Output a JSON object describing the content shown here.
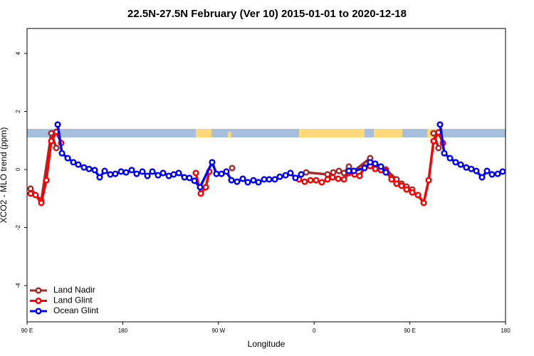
{
  "chart_data": {
    "type": "line",
    "title": "22.5N-27.5N February (Ver 10)   2015-01-01 to 2020-12-18",
    "x_label": "Longitude",
    "y_label": "XCO2 - MLO trend (ppm)",
    "xlim": [
      90,
      540
    ],
    "xticks": [
      {
        "value": 90,
        "label": "90 E"
      },
      180,
      {
        "value": 270,
        "label": "90 W"
      },
      {
        "value": 360,
        "label": "0"
      },
      {
        "value": 450,
        "label": "90 E"
      },
      {
        "value": 540,
        "label": "180"
      }
    ],
    "ylim": [
      -5.25,
      4.86
    ],
    "yticks": [
      -4,
      -2,
      0,
      2,
      4
    ],
    "legend": "bottom-left",
    "series": [
      {
        "name": "Land Nadir",
        "color": "#a52a2a",
        "x": [
          93.3,
          103.4,
          112.8,
          117.5,
          null,
          282.9,
          null,
          352.5,
          372.6,
          378.0,
          383.3,
          388.0,
          392.7,
          397.3,
          412.7,
          417.4,
          427.5,
          437.5,
          442.2,
          446.9,
          452.3,
          null,
          472.3,
          477.0
        ],
        "values": [
          -0.66,
          -1.08,
          1.25,
          0.74,
          null,
          0.05,
          null,
          -0.1,
          -0.17,
          -0.1,
          -0.05,
          -0.12,
          0.1,
          -0.05,
          0.39,
          0.12,
          0.0,
          -0.34,
          -0.49,
          -0.59,
          -0.69,
          null,
          1.25,
          0.74
        ]
      },
      {
        "name": "Land Glint",
        "color": "#ff0000",
        "x": [
          93.3,
          98.0,
          103.4,
          108.1,
          112.8,
          117.5,
          122.1,
          null,
          248.7,
          253.4,
          258.1,
          261.4,
          null,
          345.8,
          351.1,
          356.5,
          361.9,
          367.2,
          372.6,
          377.3,
          382.6,
          388.0,
          392.7,
          398.0,
          402.7,
          407.4,
          412.7,
          417.4,
          422.8,
          427.5,
          432.8,
          437.5,
          442.2,
          446.9,
          452.3,
          457.6,
          463.0,
          467.7,
          472.3,
          477.0,
          481.1
        ],
        "values": [
          -0.83,
          -0.88,
          -1.15,
          -0.37,
          0.98,
          1.3,
          0.91,
          null,
          -0.12,
          -0.83,
          -0.61,
          -0.07,
          null,
          -0.34,
          -0.42,
          -0.37,
          -0.37,
          -0.44,
          -0.34,
          -0.27,
          -0.32,
          -0.34,
          -0.12,
          -0.17,
          -0.22,
          0.07,
          0.12,
          0.02,
          -0.02,
          -0.05,
          -0.34,
          -0.49,
          -0.56,
          -0.69,
          -0.79,
          -0.88,
          -1.15,
          -0.37,
          0.98,
          1.28,
          0.91
        ]
      },
      {
        "name": "Ocean Glint",
        "color": "#0000ff",
        "x": [
          118.8,
          122.8,
          128.2,
          133.5,
          138.2,
          143.6,
          148.3,
          153.6,
          158.3,
          163.0,
          168.3,
          173.0,
          178.4,
          183.1,
          188.4,
          193.1,
          198.5,
          203.2,
          207.9,
          213.2,
          217.9,
          223.3,
          227.9,
          232.6,
          238.0,
          242.7,
          247.4,
          252.7,
          264.1,
          268.1,
          272.8,
          277.5,
          282.2,
          287.5,
          292.9,
          297.6,
          302.9,
          307.6,
          313.0,
          317.7,
          323.0,
          327.7,
          333.1,
          337.7,
          342.4,
          347.8,
          null,
          392.7,
          397.3,
          407.4,
          412.7,
          417.4,
          422.8,
          427.5,
          null,
          478.4,
          482.4,
          487.8,
          493.1,
          497.8,
          503.1,
          507.8,
          512.5,
          517.9,
          522.6,
          527.3,
          532.6,
          537.3
        ],
        "values": [
          1.55,
          0.56,
          0.39,
          0.25,
          0.17,
          0.07,
          0.02,
          -0.02,
          -0.27,
          -0.05,
          -0.17,
          -0.15,
          -0.07,
          -0.1,
          -0.02,
          -0.15,
          -0.07,
          -0.22,
          -0.07,
          -0.2,
          -0.12,
          -0.22,
          -0.17,
          -0.12,
          -0.27,
          -0.29,
          -0.39,
          -0.61,
          0.25,
          -0.15,
          -0.15,
          -0.07,
          -0.37,
          -0.42,
          -0.32,
          -0.44,
          -0.37,
          -0.44,
          -0.34,
          -0.34,
          -0.34,
          -0.25,
          -0.2,
          -0.12,
          -0.29,
          -0.17,
          null,
          -0.05,
          -0.05,
          0.05,
          0.25,
          0.2,
          0.1,
          -0.1,
          null,
          1.55,
          0.56,
          0.39,
          0.25,
          0.17,
          0.07,
          0.02,
          -0.05,
          -0.27,
          -0.05,
          -0.17,
          -0.15,
          -0.07
        ]
      }
    ]
  }
}
